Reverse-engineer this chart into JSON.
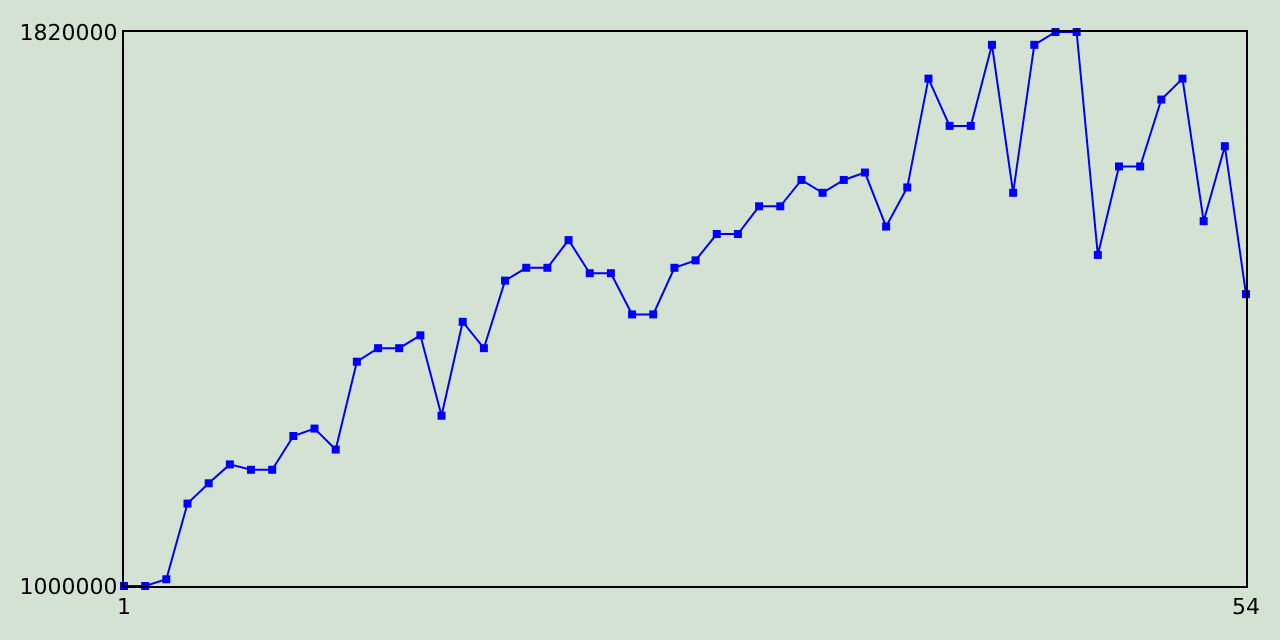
{
  "chart_data": {
    "type": "line",
    "x": [
      1,
      2,
      3,
      4,
      5,
      6,
      7,
      8,
      9,
      10,
      11,
      12,
      13,
      14,
      15,
      16,
      17,
      18,
      19,
      20,
      21,
      22,
      23,
      24,
      25,
      26,
      27,
      28,
      29,
      30,
      31,
      32,
      33,
      34,
      35,
      36,
      37,
      38,
      39,
      40,
      41,
      42,
      43,
      44,
      45,
      46,
      47,
      48,
      49,
      50,
      51,
      52,
      53,
      54
    ],
    "series": [
      {
        "color": "#0000ff",
        "values": [
          1000000,
          1000000,
          1010000,
          1122000,
          1152000,
          1180000,
          1172000,
          1172000,
          1222000,
          1233000,
          1202000,
          1332000,
          1352000,
          1352000,
          1371000,
          1252000,
          1391000,
          1352000,
          1452000,
          1471000,
          1471000,
          1512000,
          1463000,
          1463000,
          1402000,
          1402000,
          1471000,
          1482000,
          1521000,
          1521000,
          1562000,
          1562000,
          1601000,
          1582000,
          1601000,
          1612000,
          1532000,
          1590000,
          1751000,
          1681000,
          1681000,
          1801000,
          1582000,
          1801000,
          1820000,
          1820000,
          1490000,
          1621000,
          1621000,
          1720000,
          1751000,
          1540000,
          1651000,
          1432000
        ]
      }
    ],
    "xlim": [
      1,
      54
    ],
    "xticks": [
      1,
      54
    ],
    "ylim": [
      1000000,
      1820000
    ],
    "yticks": [
      1000000,
      1820000
    ],
    "marker": "square",
    "line_style": "solid"
  }
}
